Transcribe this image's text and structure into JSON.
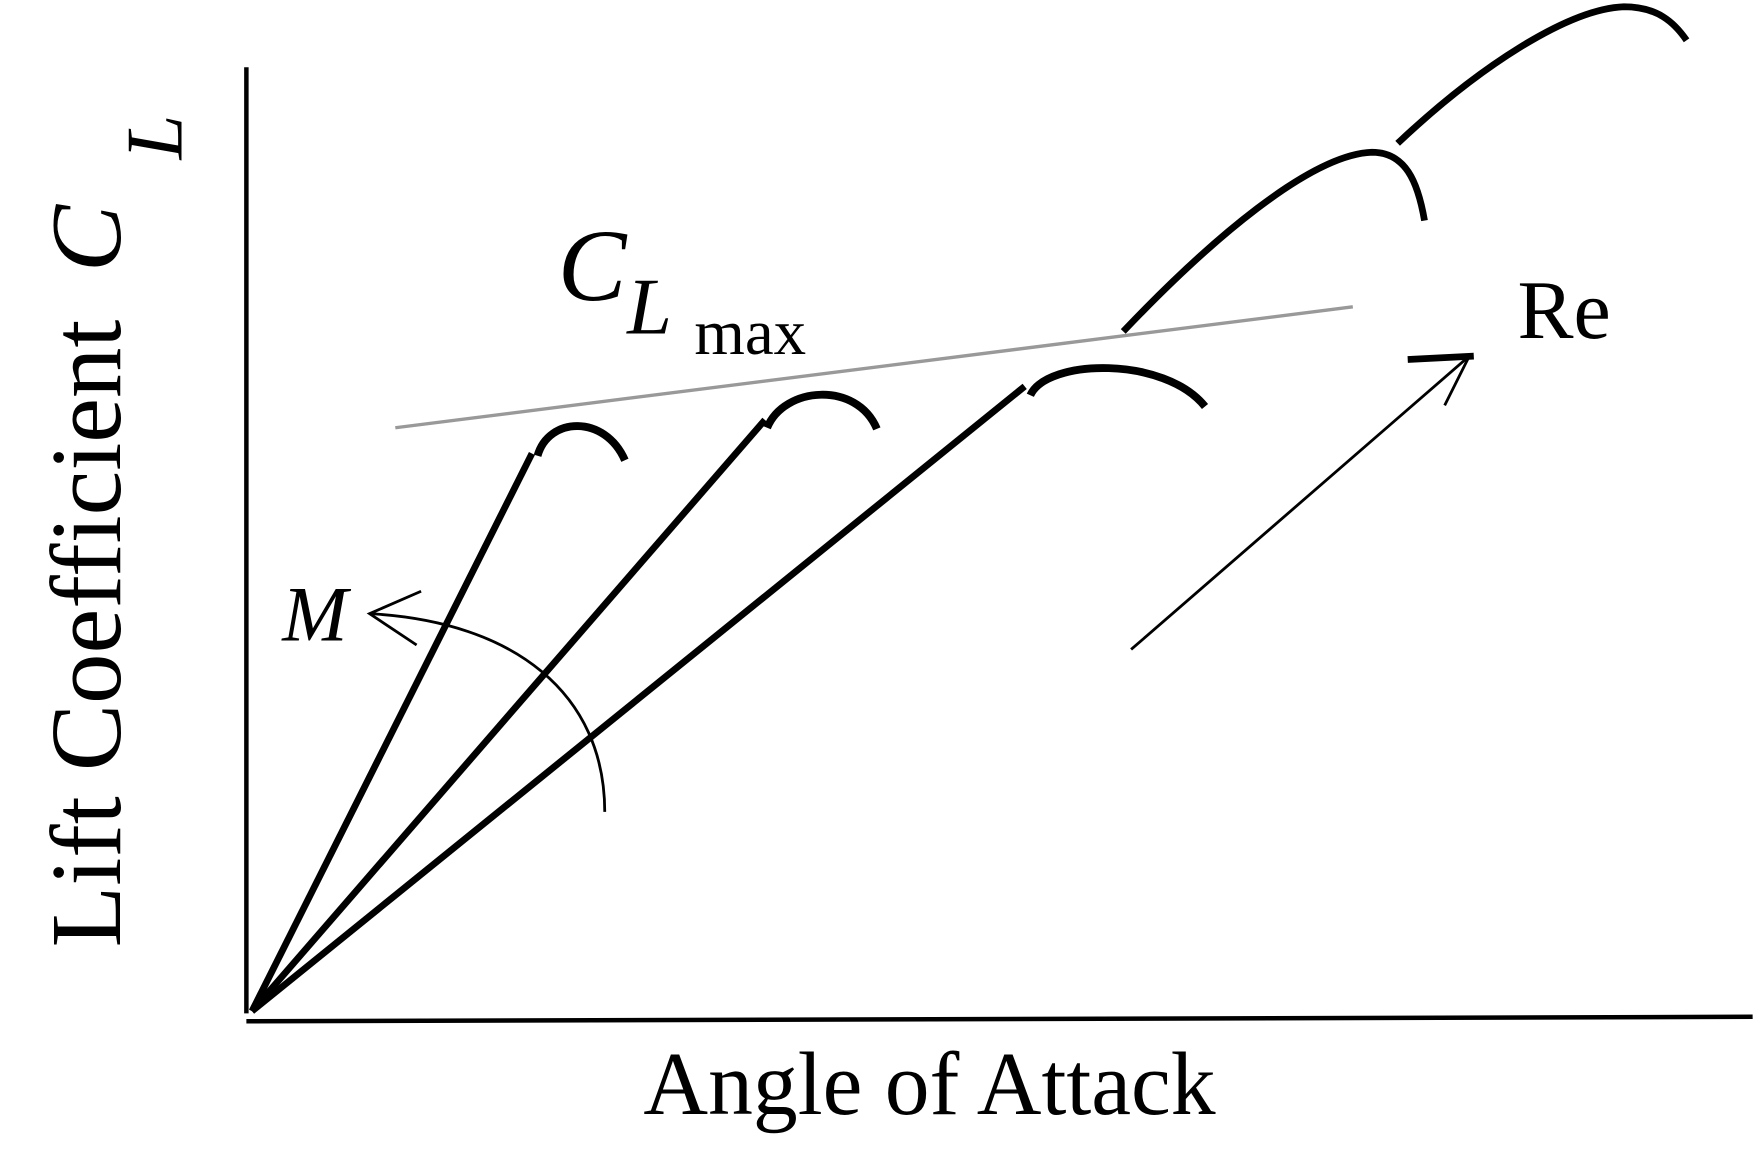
{
  "axes": {
    "x_label": "Angle of Attack",
    "y_label": {
      "text": "Lift Coefficient",
      "symbol": "C",
      "subscript": "L"
    }
  },
  "annotations": {
    "clmax": {
      "symbol": "C",
      "subscript": "L",
      "suffix": "max"
    },
    "reynolds": "Re",
    "mach": "M"
  }
}
